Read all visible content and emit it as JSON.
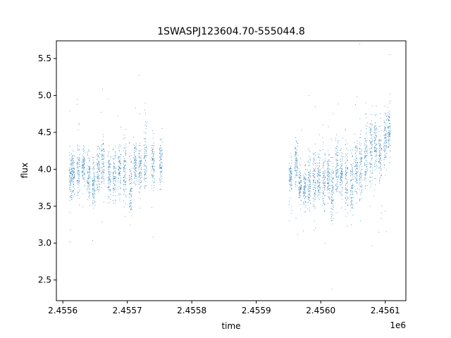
{
  "chart_data": {
    "type": "scatter",
    "title": "1SWASPJ123604.70-555044.8",
    "xlabel": "time",
    "ylabel": "flux",
    "x_offset_label": "1e6",
    "xlim": [
      2.45559,
      2.456132
    ],
    "ylim": [
      2.22,
      5.74
    ],
    "x_ticks": [
      2.4556,
      2.4557,
      2.4558,
      2.4559,
      2.456,
      2.4561
    ],
    "x_tick_labels": [
      "2.4556",
      "2.4557",
      "2.4558",
      "2.4559",
      "2.4560",
      "2.4561"
    ],
    "y_ticks": [
      2.5,
      3.0,
      3.5,
      4.0,
      4.5,
      5.0,
      5.5
    ],
    "y_tick_labels": [
      "2.5",
      "3.0",
      "3.5",
      "4.0",
      "4.5",
      "5.0",
      "5.5"
    ],
    "grid": false,
    "marker_color": "#1f77b4",
    "observing_seasons": [
      {
        "x_range": [
          2.455612,
          2.455755
        ],
        "nights": [
          {
            "x": 2.455612,
            "mean": 3.9,
            "spread": 0.3
          },
          {
            "x": 2.455616,
            "mean": 3.95,
            "spread": 0.25
          },
          {
            "x": 2.455624,
            "mean": 4.0,
            "spread": 0.28
          },
          {
            "x": 2.455632,
            "mean": 4.05,
            "spread": 0.22
          },
          {
            "x": 2.45564,
            "mean": 3.85,
            "spread": 0.3
          },
          {
            "x": 2.455648,
            "mean": 3.8,
            "spread": 0.3
          },
          {
            "x": 2.455655,
            "mean": 4.0,
            "spread": 0.28
          },
          {
            "x": 2.455662,
            "mean": 4.1,
            "spread": 0.3
          },
          {
            "x": 2.455672,
            "mean": 3.9,
            "spread": 0.33
          },
          {
            "x": 2.45568,
            "mean": 3.95,
            "spread": 0.35
          },
          {
            "x": 2.455688,
            "mean": 4.0,
            "spread": 0.3
          },
          {
            "x": 2.455696,
            "mean": 4.0,
            "spread": 0.38
          },
          {
            "x": 2.455705,
            "mean": 3.8,
            "spread": 0.35
          },
          {
            "x": 2.455712,
            "mean": 4.05,
            "spread": 0.28
          },
          {
            "x": 2.45572,
            "mean": 4.0,
            "spread": 0.3
          },
          {
            "x": 2.455728,
            "mean": 4.15,
            "spread": 0.38
          },
          {
            "x": 2.45574,
            "mean": 4.05,
            "spread": 0.3
          },
          {
            "x": 2.455752,
            "mean": 4.1,
            "spread": 0.3
          }
        ]
      },
      {
        "x_range": [
          2.455953,
          2.456108
        ],
        "nights": [
          {
            "x": 2.455953,
            "mean": 3.9,
            "spread": 0.2
          },
          {
            "x": 2.455962,
            "mean": 4.1,
            "spread": 0.3
          },
          {
            "x": 2.455968,
            "mean": 3.8,
            "spread": 0.22
          },
          {
            "x": 2.455975,
            "mean": 3.75,
            "spread": 0.25
          },
          {
            "x": 2.455982,
            "mean": 3.8,
            "spread": 0.3
          },
          {
            "x": 2.45599,
            "mean": 3.85,
            "spread": 0.33
          },
          {
            "x": 2.455997,
            "mean": 3.9,
            "spread": 0.3
          },
          {
            "x": 2.456005,
            "mean": 3.85,
            "spread": 0.35
          },
          {
            "x": 2.456012,
            "mean": 3.9,
            "spread": 0.32
          },
          {
            "x": 2.456018,
            "mean": 3.7,
            "spread": 0.4
          },
          {
            "x": 2.456025,
            "mean": 4.05,
            "spread": 0.35
          },
          {
            "x": 2.456032,
            "mean": 3.95,
            "spread": 0.33
          },
          {
            "x": 2.45604,
            "mean": 3.9,
            "spread": 0.4
          },
          {
            "x": 2.456048,
            "mean": 3.85,
            "spread": 0.38
          },
          {
            "x": 2.456055,
            "mean": 4.0,
            "spread": 0.35
          },
          {
            "x": 2.456062,
            "mean": 4.0,
            "spread": 0.4
          },
          {
            "x": 2.45607,
            "mean": 4.15,
            "spread": 0.38
          },
          {
            "x": 2.456078,
            "mean": 4.25,
            "spread": 0.4
          },
          {
            "x": 2.456085,
            "mean": 4.35,
            "spread": 0.38
          },
          {
            "x": 2.456092,
            "mean": 4.2,
            "spread": 0.35
          },
          {
            "x": 2.4561,
            "mean": 4.4,
            "spread": 0.38
          },
          {
            "x": 2.456106,
            "mean": 4.55,
            "spread": 0.3
          }
        ]
      }
    ]
  }
}
